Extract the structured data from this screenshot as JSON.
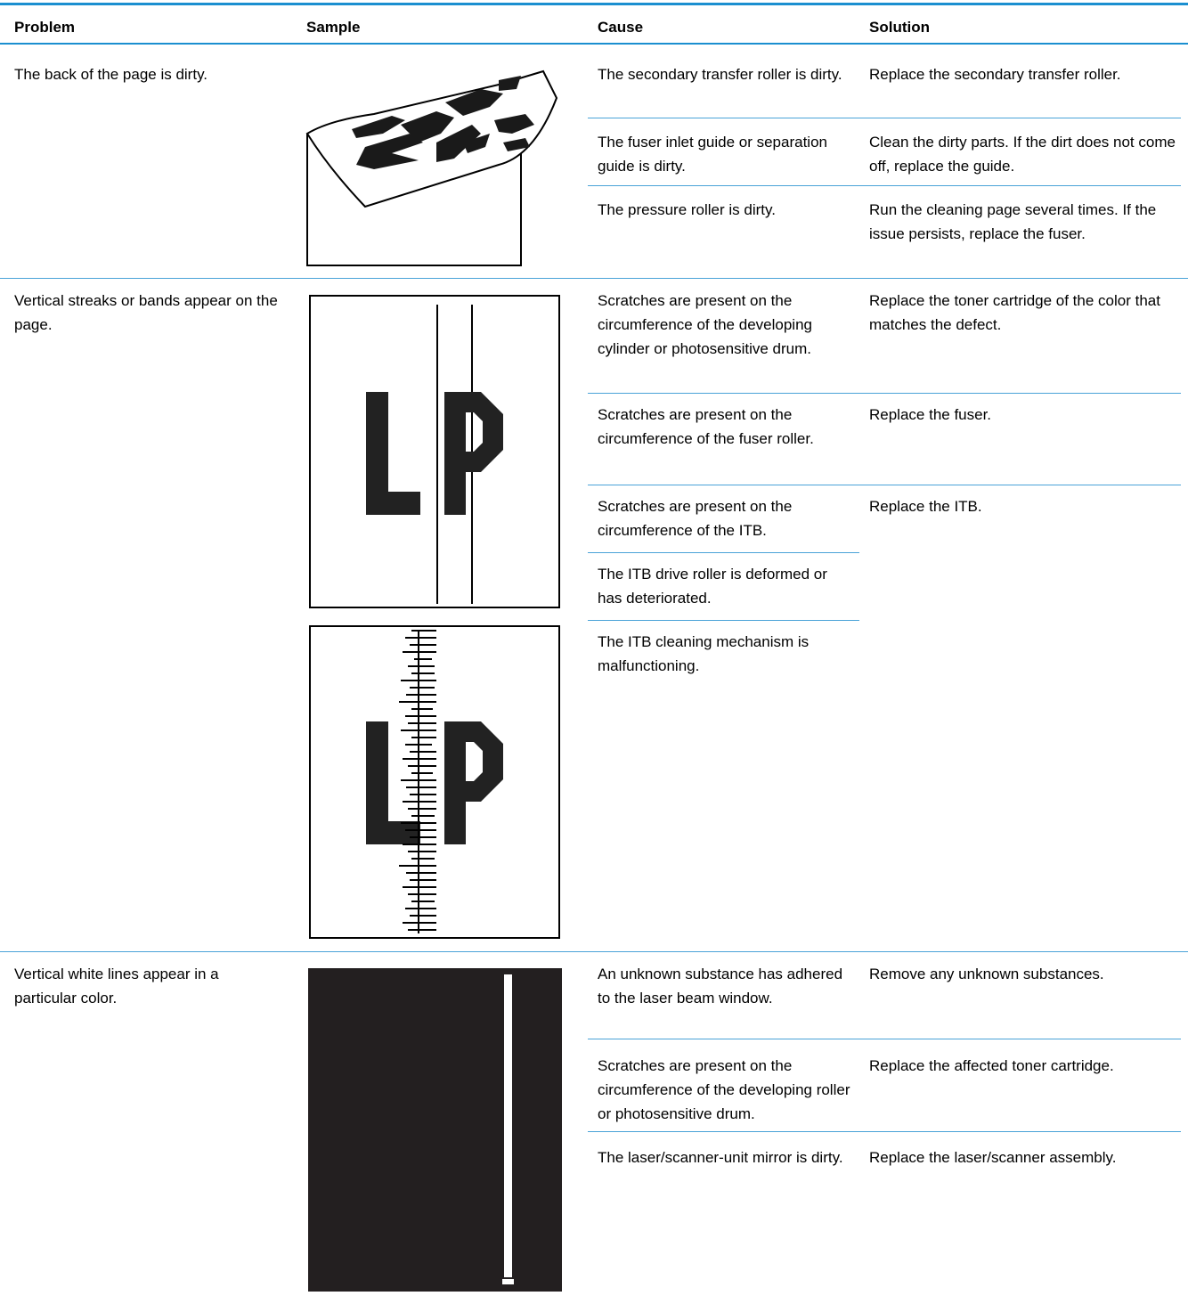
{
  "table": {
    "header": [
      "Problem",
      "Sample",
      "Cause",
      "Solution"
    ],
    "rows": [
      {
        "problem": "The back of the page is dirty.",
        "items": [
          {
            "cause": "The secondary transfer roller is dirty.",
            "solution": "Replace the secondary transfer roller."
          },
          {
            "cause": "The fuser inlet guide or separation guide is dirty.",
            "solution": "Clean the dirty parts. If the dirt does not come off, replace the guide."
          },
          {
            "cause": "The pressure roller is dirty.",
            "solution": "Run the cleaning page several times. If the issue persists, replace the fuser."
          }
        ]
      },
      {
        "problem": "Vertical streaks or bands appear on the page.",
        "items": [
          {
            "cause": "Scratches are present on the circumference of the developing cylinder or photosensitive drum.",
            "solution": "Replace the toner cartridge of the color that matches the defect."
          },
          {
            "cause": "Scratches are present on the circumference of the fuser roller.",
            "solution": "Replace the fuser."
          },
          {
            "cause": "Scratches are present on the circumference of the ITB.",
            "solution": "Replace the ITB."
          },
          {
            "cause": "The ITB drive roller is deformed or has deteriorated."
          },
          {
            "cause": "The ITB cleaning mechanism is malfunctioning."
          }
        ]
      },
      {
        "problem": "Vertical white lines appear in a particular color.",
        "items": [
          {
            "cause": "An unknown substance has adhered to the laser beam window.",
            "solution": "Remove any unknown substances."
          },
          {
            "cause": "Scratches are present on the circumference of the developing roller or photosensitive drum.",
            "solution": "Replace the affected toner cartridge."
          },
          {
            "cause": "The laser/scanner-unit mirror is dirty.",
            "solution": "Replace the laser/scanner assembly."
          }
        ]
      }
    ]
  }
}
